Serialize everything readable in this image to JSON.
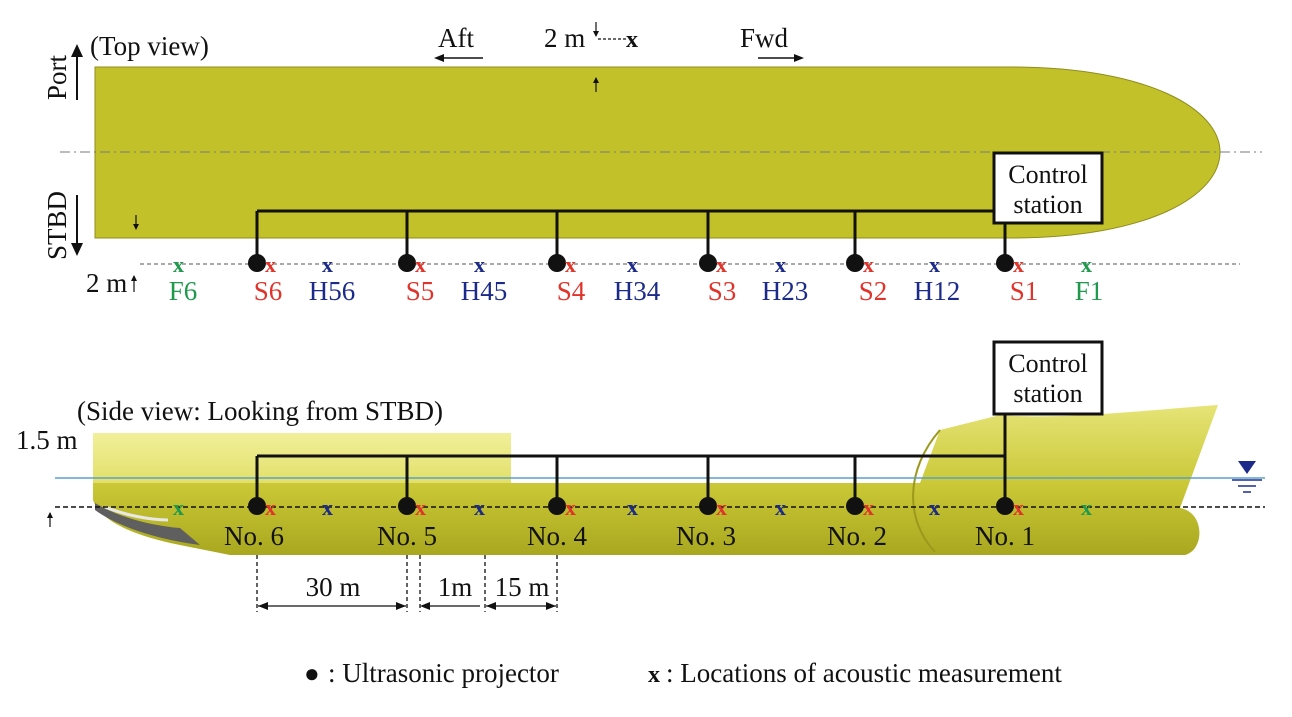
{
  "top_view": {
    "title": "(Top view)",
    "port_label": "Port",
    "stbd_label": "STBD",
    "aft_label": "Aft",
    "fwd_label": "Fwd",
    "spacing_label": "2 m",
    "offset_label": "2 m",
    "control_station": [
      "Control",
      "station"
    ],
    "stations": [
      {
        "label": "F6",
        "type": "forward"
      },
      {
        "label": "S6",
        "type": "projector"
      },
      {
        "label": "H56",
        "type": "half"
      },
      {
        "label": "S5",
        "type": "projector"
      },
      {
        "label": "H45",
        "type": "half"
      },
      {
        "label": "S4",
        "type": "projector"
      },
      {
        "label": "H34",
        "type": "half"
      },
      {
        "label": "S3",
        "type": "projector"
      },
      {
        "label": "H23",
        "type": "half"
      },
      {
        "label": "S2",
        "type": "projector"
      },
      {
        "label": "H12",
        "type": "half"
      },
      {
        "label": "S1",
        "type": "projector"
      },
      {
        "label": "F1",
        "type": "forward"
      }
    ]
  },
  "side_view": {
    "title": "(Side view: Looking from STBD)",
    "depth_label": "1.5 m",
    "control_station": [
      "Control",
      "station"
    ],
    "projectors": [
      "No. 6",
      "No. 5",
      "No. 4",
      "No. 3",
      "No. 2",
      "No. 1"
    ],
    "dimensions": {
      "spacing": "30 m",
      "offset": "1m",
      "half_spacing": "15 m"
    }
  },
  "legend": {
    "projector_symbol": "●",
    "projector": ": Ultrasonic projector",
    "measurement_symbol": "x",
    "measurement": ": Locations of acoustic measurement"
  },
  "colors": {
    "hull": "#c3c12a",
    "hull_light": "#e2e06a",
    "projector_marker": "#e0342b",
    "half_marker": "#1c2b8a",
    "forward_marker": "#1f9a4c",
    "waterline": "#5aa0c8"
  }
}
